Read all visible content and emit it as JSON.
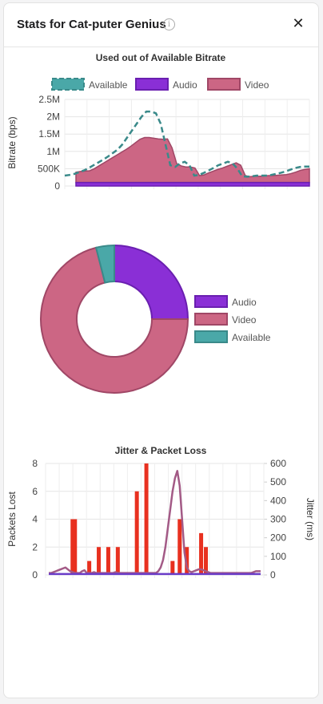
{
  "header": {
    "title": "Stats for Cat-puter Genius",
    "info_icon": "info-icon",
    "close_icon": "close-icon",
    "close_glyph": "✕"
  },
  "colors": {
    "available": "#4aa8a8",
    "audio": "#8a2fd6",
    "video": "#cc6684",
    "packets": "#e8301f",
    "jitter_video": "#a35a86",
    "jitter_audio": "#6a3cc8"
  },
  "chart_data": [
    {
      "type": "area",
      "title": "Used out of Available Bitrate",
      "ylabel": "Bitrate (bps)",
      "xlabel": "",
      "ylim": [
        0,
        2500000
      ],
      "yticks": [
        0,
        500000,
        1000000,
        1500000,
        2000000,
        2500000
      ],
      "ytick_labels": [
        "0",
        "500K",
        "1M",
        "1.5M",
        "2M",
        "2.5M"
      ],
      "legend": "top",
      "grid": true,
      "x": [
        0,
        1,
        2,
        3,
        4,
        5,
        6,
        7,
        8,
        9,
        10,
        11,
        12,
        13,
        14,
        15,
        16,
        17,
        18,
        19,
        20,
        21,
        22,
        23,
        24,
        25,
        26,
        27,
        28,
        29,
        30,
        31,
        32,
        33,
        34,
        35,
        36,
        37,
        38,
        39,
        40,
        41,
        42,
        43,
        44,
        45,
        46,
        47,
        48,
        49,
        50,
        51
      ],
      "series": [
        {
          "name": "Available",
          "style": "dashed-line",
          "values": [
            300000,
            320000,
            350000,
            400000,
            450000,
            520000,
            600000,
            680000,
            760000,
            850000,
            950000,
            1050000,
            1200000,
            1400000,
            1600000,
            1800000,
            2000000,
            2150000,
            2150000,
            2100000,
            1800000,
            1200000,
            600000,
            550000,
            650000,
            700000,
            600000,
            300000,
            320000,
            380000,
            450000,
            520000,
            600000,
            650000,
            700000,
            650000,
            500000,
            280000,
            270000,
            280000,
            300000,
            300000,
            300000,
            320000,
            350000,
            380000,
            420000,
            470000,
            520000,
            550000,
            560000,
            560000
          ]
        },
        {
          "name": "Audio",
          "style": "stacked-area",
          "values": [
            100000,
            100000,
            100000,
            100000,
            100000,
            100000,
            100000,
            100000,
            100000,
            100000,
            100000,
            100000,
            100000,
            100000,
            100000,
            100000,
            100000,
            100000,
            100000,
            100000,
            100000,
            100000,
            100000,
            100000,
            100000,
            100000,
            100000,
            100000,
            100000,
            100000,
            100000,
            100000,
            100000,
            100000,
            100000,
            100000,
            100000,
            100000,
            100000,
            100000,
            100000,
            100000,
            100000,
            100000,
            100000,
            100000,
            100000,
            100000,
            100000,
            100000,
            100000,
            100000
          ]
        },
        {
          "name": "Video",
          "style": "stacked-area",
          "values": [
            300000,
            320000,
            330000,
            340000,
            400000,
            480000,
            560000,
            640000,
            720000,
            800000,
            880000,
            960000,
            1050000,
            1150000,
            1250000,
            1300000,
            1300000,
            1280000,
            1260000,
            1250000,
            1260000,
            1000000,
            550000,
            480000,
            450000,
            450000,
            420000,
            200000,
            220000,
            280000,
            330000,
            380000,
            420000,
            470000,
            520000,
            570000,
            500000,
            200000,
            170000,
            180000,
            180000,
            190000,
            200000,
            200000,
            210000,
            220000,
            230000,
            260000,
            300000,
            350000,
            380000,
            400000
          ]
        }
      ]
    },
    {
      "type": "pie",
      "variant": "doughnut",
      "legend": "right",
      "labels": [
        "Audio",
        "Video",
        "Available"
      ],
      "values": [
        25,
        71,
        4
      ]
    },
    {
      "type": "bar",
      "title": "Jitter & Packet Loss",
      "ylabel": "Packets Lost",
      "ylim": [
        0,
        8
      ],
      "yticks": [
        0,
        2,
        4,
        6,
        8
      ],
      "y2label": "Jitter (ms)",
      "y2lim": [
        0,
        600
      ],
      "y2ticks": [
        0,
        100,
        200,
        300,
        400,
        500,
        600
      ],
      "grid": true,
      "x": [
        0,
        1,
        2,
        3,
        4,
        5,
        6,
        7,
        8,
        9,
        10,
        11,
        12,
        13,
        14,
        15,
        16,
        17,
        18,
        19,
        20,
        21,
        22,
        23,
        24,
        25,
        26,
        27,
        28,
        29,
        30,
        31,
        32,
        33,
        34,
        35,
        36,
        37,
        38,
        39,
        40,
        41,
        42,
        43,
        44,
        45,
        46,
        47,
        48,
        49,
        50,
        51,
        52,
        53,
        54,
        55,
        56,
        57,
        58,
        59,
        60,
        61,
        62,
        63,
        64,
        65,
        66,
        67,
        68,
        69,
        70,
        71,
        72,
        73,
        74,
        75,
        76,
        77,
        78,
        79,
        80,
        81,
        82,
        83,
        84,
        85,
        86,
        87,
        88,
        89
      ],
      "packets_lost": [
        0,
        0,
        0,
        0,
        0,
        0,
        0,
        0,
        0,
        0,
        4,
        4,
        0,
        0,
        0,
        0,
        0,
        1,
        0,
        0,
        0,
        2,
        0,
        0,
        0,
        2,
        0,
        0,
        0,
        2,
        0,
        0,
        0,
        0,
        0,
        0,
        0,
        6,
        0,
        0,
        0,
        8,
        0,
        0,
        0,
        0,
        0,
        0,
        0,
        0,
        0,
        0,
        1,
        0,
        0,
        4,
        0,
        0,
        2,
        0,
        0,
        0,
        0,
        0,
        3,
        0,
        2,
        0,
        0,
        0,
        0,
        0,
        0,
        0,
        0,
        0,
        0,
        0,
        0,
        0,
        0,
        0,
        0,
        0,
        0,
        0,
        0,
        0,
        0,
        0
      ],
      "series": [
        {
          "name": "",
          "axis": "y2",
          "values": [
            10,
            10,
            15,
            20,
            25,
            30,
            35,
            40,
            30,
            20,
            15,
            10,
            10,
            10,
            20,
            25,
            10,
            10,
            10,
            15,
            10,
            10,
            10,
            10,
            10,
            10,
            10,
            10,
            15,
            10,
            10,
            10,
            10,
            10,
            10,
            10,
            10,
            10,
            10,
            10,
            10,
            10,
            10,
            10,
            10,
            10,
            20,
            40,
            80,
            150,
            250,
            350,
            450,
            520,
            560,
            480,
            300,
            120,
            40,
            20,
            15,
            20,
            25,
            30,
            30,
            25,
            20,
            15,
            10,
            10,
            10,
            10,
            10,
            10,
            10,
            10,
            10,
            10,
            10,
            10,
            10,
            10,
            10,
            10,
            10,
            10,
            15,
            20,
            20,
            20
          ]
        },
        {
          "name": "",
          "axis": "y2",
          "values": [
            5,
            5,
            5,
            5,
            5,
            5,
            5,
            5,
            5,
            5,
            5,
            5,
            5,
            5,
            5,
            5,
            5,
            5,
            5,
            5,
            5,
            5,
            5,
            5,
            5,
            5,
            5,
            5,
            5,
            5,
            5,
            5,
            5,
            5,
            5,
            5,
            5,
            5,
            5,
            5,
            5,
            5,
            5,
            5,
            5,
            5,
            5,
            5,
            5,
            5,
            5,
            5,
            5,
            5,
            5,
            5,
            5,
            5,
            5,
            5,
            5,
            5,
            5,
            5,
            5,
            5,
            5,
            5,
            5,
            5,
            5,
            5,
            5,
            5,
            5,
            5,
            5,
            5,
            5,
            5,
            5,
            5,
            5,
            5,
            5,
            5,
            5,
            5,
            5,
            5
          ]
        }
      ]
    }
  ]
}
